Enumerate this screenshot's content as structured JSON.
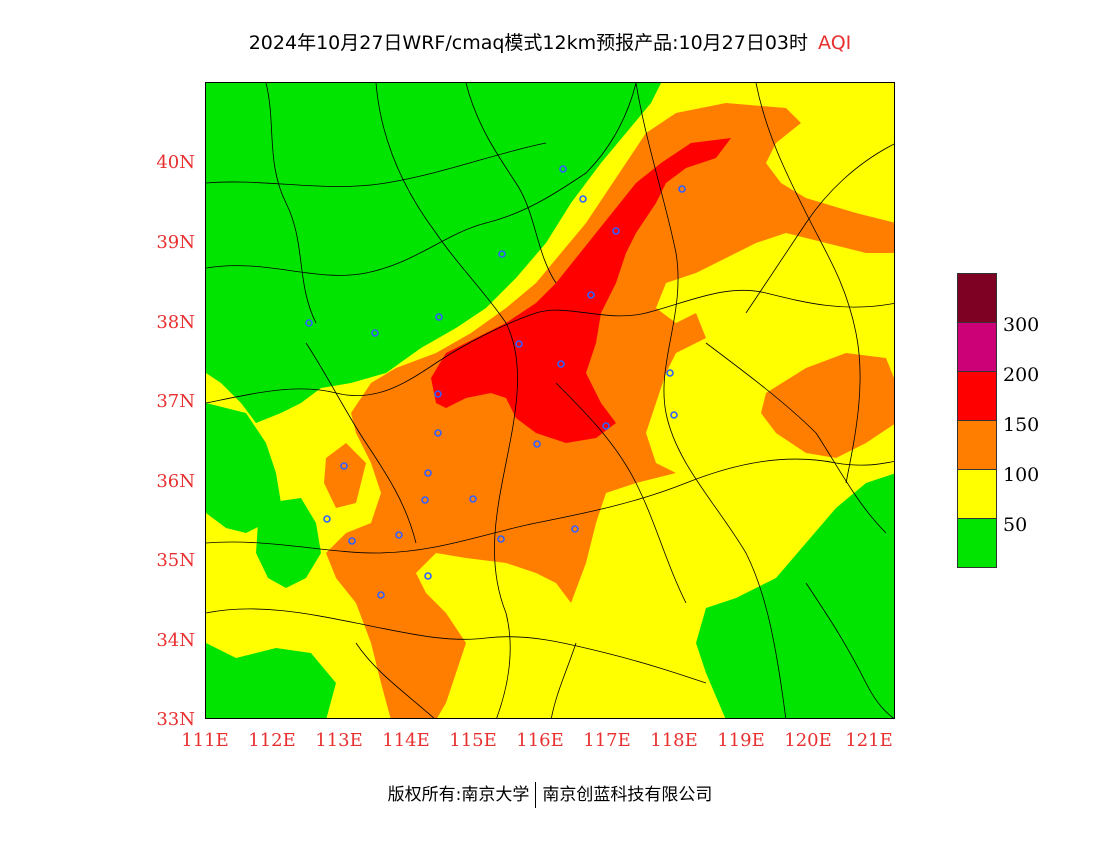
{
  "title": {
    "text": "2024年10月27日WRF/cmaq模式12km预报产品:10月27日03时",
    "product": "AQI"
  },
  "map": {
    "lat_labels": [
      "40N",
      "39N",
      "38N",
      "37N",
      "36N",
      "35N",
      "34N",
      "33N"
    ],
    "lon_labels": [
      "111E",
      "112E",
      "113E",
      "114E",
      "115E",
      "116E",
      "117E",
      "118E",
      "119E",
      "120E",
      "121E"
    ],
    "lat_range": [
      33,
      41
    ],
    "lon_range": [
      111,
      121.3
    ],
    "colors": {
      "good": "#00e400",
      "moderate": "#ffff00",
      "usg": "#ff7e00",
      "unhealthy": "#ff0000",
      "very_unhealthy": "#cc0077",
      "hazardous": "#7e0023",
      "station": "#3060ff",
      "border": "#000000"
    }
  },
  "legend": {
    "items": [
      {
        "label": "",
        "color": "#7e0023"
      },
      {
        "label": "300",
        "color": "#cc0077"
      },
      {
        "label": "200",
        "color": "#ff0000"
      },
      {
        "label": "150",
        "color": "#ff7e00"
      },
      {
        "label": "100",
        "color": "#ffff00"
      },
      {
        "label": "50",
        "color": "#00e400"
      }
    ]
  },
  "footer": {
    "left": "版权所有:南京大学",
    "right": "南京创蓝科技有限公司"
  }
}
